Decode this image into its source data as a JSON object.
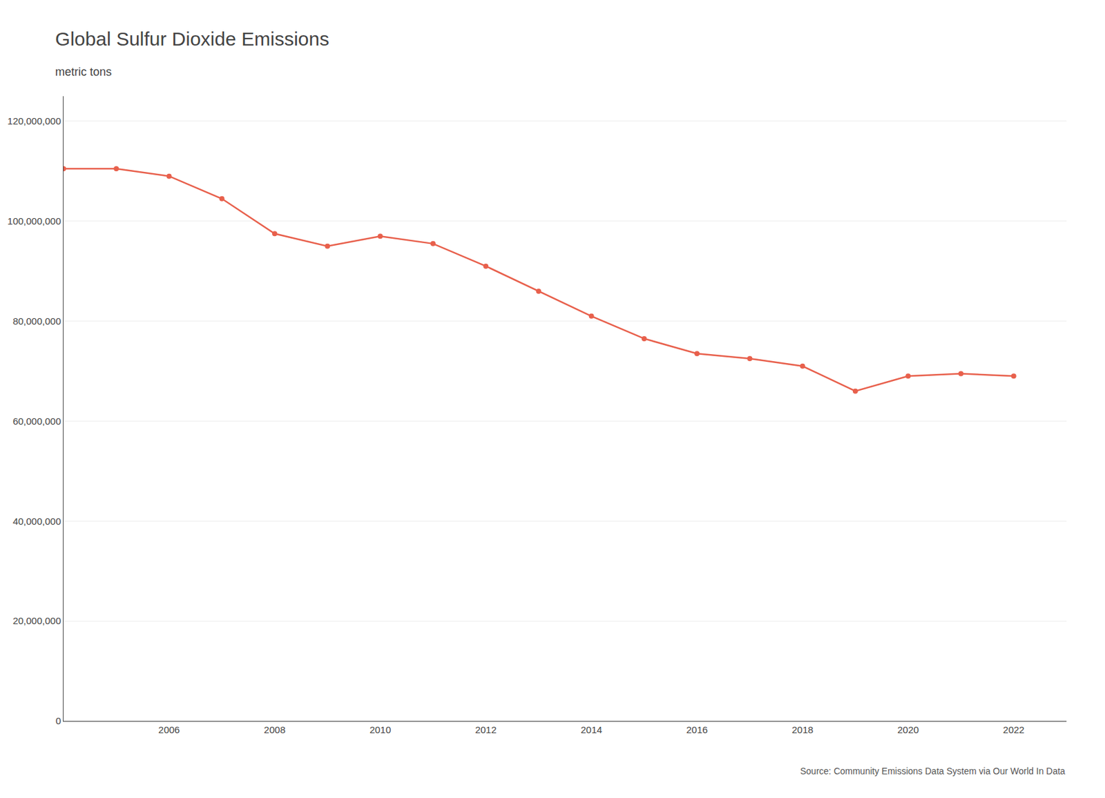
{
  "chart_data": {
    "type": "line",
    "title": "Global Sulfur Dioxide Emissions",
    "subtitle": "metric tons",
    "annotations": [
      "Source: Community Emissions Data System via Our World In Data"
    ],
    "x": [
      2004,
      2005,
      2006,
      2007,
      2008,
      2009,
      2010,
      2011,
      2012,
      2013,
      2014,
      2015,
      2016,
      2017,
      2018,
      2019,
      2020,
      2021,
      2022
    ],
    "values": [
      110500000,
      110500000,
      109000000,
      104500000,
      97500000,
      95000000,
      97000000,
      95500000,
      91000000,
      86000000,
      81000000,
      76500000,
      73500000,
      72500000,
      71000000,
      66000000,
      69000000,
      69500000,
      69000000
    ],
    "color": "#E8604C",
    "marker": "circle",
    "xlim": [
      2004,
      2023
    ],
    "xticks": [
      2006,
      2008,
      2010,
      2012,
      2014,
      2016,
      2018,
      2020,
      2022
    ],
    "ylim": [
      0,
      125000000
    ],
    "yticks": [
      0,
      {
        "value": 20000000,
        "label": "20,000,000"
      },
      {
        "value": 40000000,
        "label": "40,000,000"
      },
      {
        "value": 60000000,
        "label": "60,000,000"
      },
      {
        "value": 80000000,
        "label": "80,000,000"
      },
      {
        "value": 100000000,
        "label": "100,000,000"
      },
      {
        "value": 120000000,
        "label": "120,000,000"
      }
    ],
    "grid": true
  }
}
